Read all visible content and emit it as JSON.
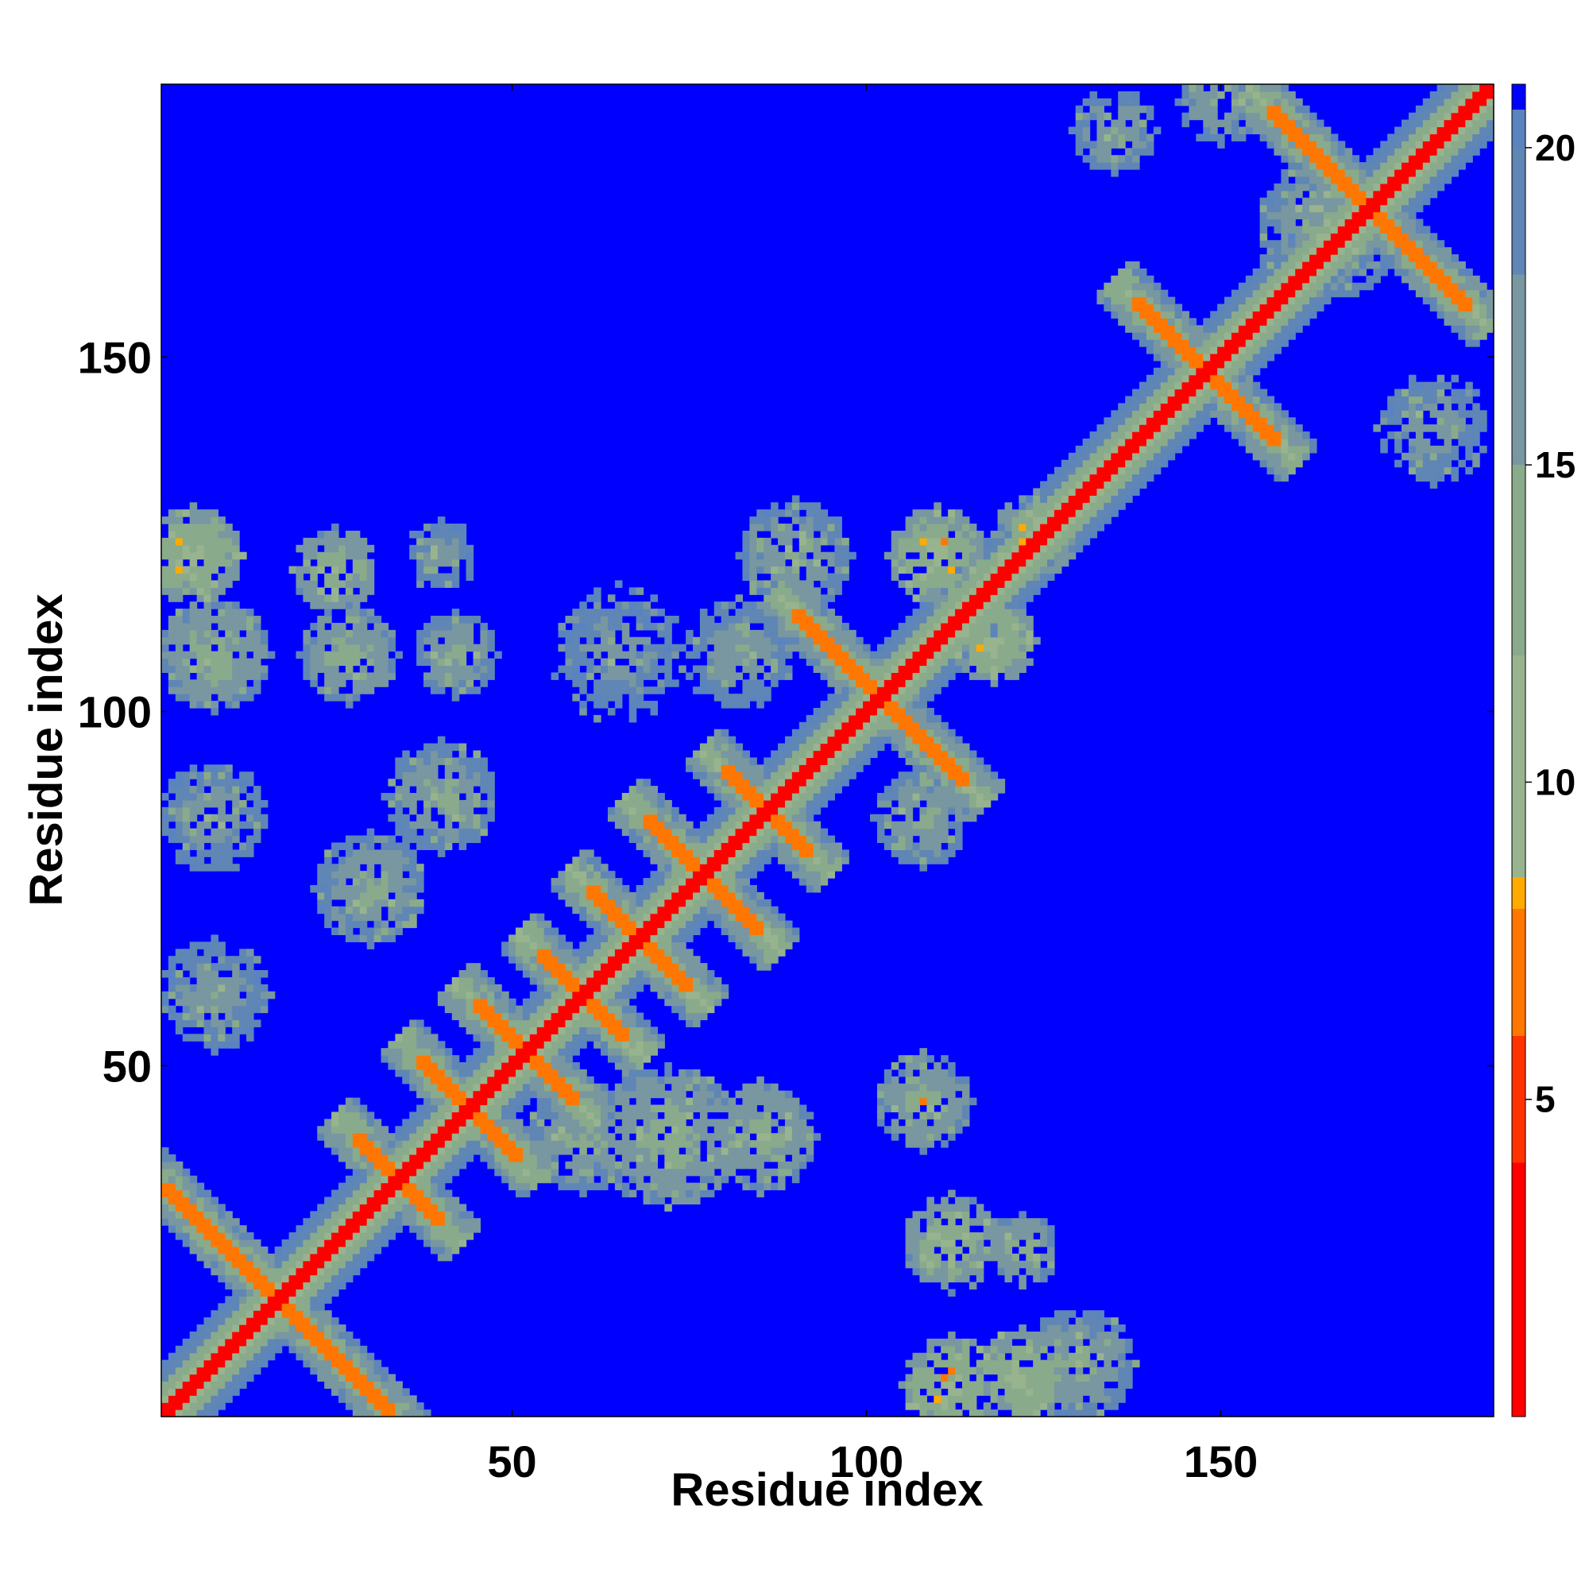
{
  "chart_data": {
    "type": "heatmap",
    "title": "",
    "xlabel": "Residue index",
    "ylabel": "Residue index",
    "xlim": [
      1,
      188
    ],
    "ylim": [
      1,
      188
    ],
    "xticks": [
      50,
      100,
      150
    ],
    "yticks": [
      50,
      100,
      150
    ],
    "grid": false,
    "colorbar": {
      "range": [
        0,
        21
      ],
      "ticks": [
        5,
        10,
        15,
        20
      ],
      "stops": [
        {
          "value": 0,
          "color": "#ff0000"
        },
        {
          "value": 4,
          "color": "#ff3300"
        },
        {
          "value": 6,
          "color": "#ff7700"
        },
        {
          "value": 8,
          "color": "#ffaa00"
        },
        {
          "value": 8.5,
          "color": "#98b48e"
        },
        {
          "value": 12,
          "color": "#8aaa8c"
        },
        {
          "value": 15,
          "color": "#7897a0"
        },
        {
          "value": 18,
          "color": "#5f86b4"
        },
        {
          "value": 20,
          "color": "#5a84c0"
        },
        {
          "value": 20.6,
          "color": "#0000ff"
        }
      ]
    },
    "structure": {
      "description_value_max": 21,
      "diagonal": {
        "from": 1,
        "to": 188
      },
      "antiparallel_contacts": [
        {
          "center": 17,
          "half_length": 16
        },
        {
          "center": 34,
          "half_length": 6
        },
        {
          "center": 44,
          "half_length": 7
        },
        {
          "center": 52,
          "half_length": 7
        },
        {
          "center": 60,
          "half_length": 6
        },
        {
          "center": 68,
          "half_length": 7
        },
        {
          "center": 77,
          "half_length": 8
        },
        {
          "center": 86,
          "half_length": 6
        },
        {
          "center": 102,
          "half_length": 12
        },
        {
          "center": 148,
          "half_length": 10
        },
        {
          "center": 171,
          "half_length": 14
        }
      ],
      "contact_clusters": [
        {
          "i": 5,
          "j": 122,
          "r": 7,
          "v": 9
        },
        {
          "i": 8,
          "j": 108,
          "r": 8,
          "v": 11
        },
        {
          "i": 25,
          "j": 120,
          "r": 6,
          "v": 10
        },
        {
          "i": 27,
          "j": 108,
          "r": 7,
          "v": 11
        },
        {
          "i": 42,
          "j": 108,
          "r": 6,
          "v": 12
        },
        {
          "i": 40,
          "j": 122,
          "r": 5,
          "v": 13
        },
        {
          "i": 65,
          "j": 108,
          "r": 10,
          "v": 14
        },
        {
          "i": 82,
          "j": 108,
          "r": 8,
          "v": 13
        },
        {
          "i": 90,
          "j": 122,
          "r": 8,
          "v": 12
        },
        {
          "i": 110,
          "j": 122,
          "r": 7,
          "v": 9
        },
        {
          "i": 118,
          "j": 110,
          "r": 6,
          "v": 9
        },
        {
          "i": 124,
          "j": 125,
          "r": 6,
          "v": 9
        },
        {
          "i": 165,
          "j": 168,
          "r": 10,
          "v": 12
        },
        {
          "i": 135,
          "j": 182,
          "r": 6,
          "v": 12
        },
        {
          "i": 150,
          "j": 186,
          "r": 6,
          "v": 12
        },
        {
          "i": 180,
          "j": 140,
          "r": 8,
          "v": 13
        },
        {
          "i": 112,
          "j": 5,
          "r": 7,
          "v": 9
        },
        {
          "i": 122,
          "j": 6,
          "r": 7,
          "v": 9
        },
        {
          "i": 112,
          "j": 25,
          "r": 7,
          "v": 10
        },
        {
          "i": 122,
          "j": 24,
          "r": 5,
          "v": 11
        },
        {
          "i": 108,
          "j": 45,
          "r": 7,
          "v": 11
        },
        {
          "i": 72,
          "j": 40,
          "r": 10,
          "v": 11
        },
        {
          "i": 60,
          "j": 40,
          "r": 8,
          "v": 12
        },
        {
          "i": 85,
          "j": 40,
          "r": 8,
          "v": 11
        },
        {
          "i": 30,
          "j": 75,
          "r": 8,
          "v": 12
        },
        {
          "i": 40,
          "j": 88,
          "r": 8,
          "v": 12
        },
        {
          "i": 8,
          "j": 60,
          "r": 8,
          "v": 13
        },
        {
          "i": 8,
          "j": 85,
          "r": 8,
          "v": 13
        },
        {
          "i": 108,
          "j": 85,
          "r": 7,
          "v": 12
        },
        {
          "i": 130,
          "j": 8,
          "r": 8,
          "v": 12
        }
      ]
    }
  }
}
